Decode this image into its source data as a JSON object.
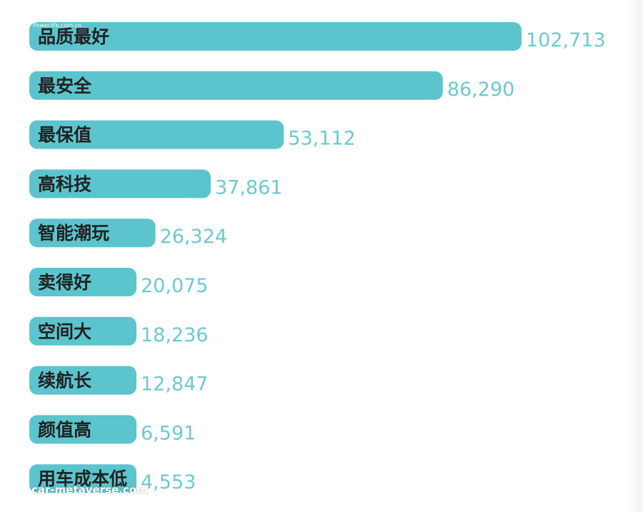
{
  "chart_data": {
    "type": "bar",
    "orientation": "horizontal",
    "categories": [
      "品质最好",
      "最安全",
      "最保值",
      "高科技",
      "智能潮玩",
      "卖得好",
      "空间大",
      "续航长",
      "颜值高",
      "用车成本低"
    ],
    "values": [
      102713,
      86290,
      53112,
      37861,
      26324,
      20075,
      18236,
      12847,
      6591,
      4553
    ],
    "value_labels": [
      "102,713",
      "86,290",
      "53,112",
      "37,861",
      "26,324",
      "20,075",
      "18,236",
      "12,847",
      "6,591",
      "4,553"
    ],
    "bar_color": "#5cc4cd",
    "label_color": "#222222",
    "value_color": "#6cc9d2"
  },
  "watermarks": {
    "top": "Powerlife.com.cn",
    "bottom": "car-metaverse.com"
  }
}
